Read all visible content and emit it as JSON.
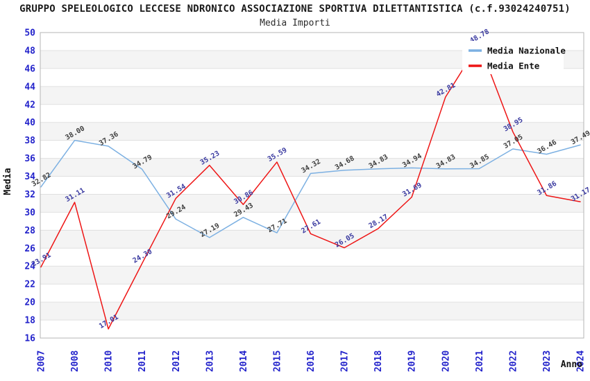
{
  "chart_data": {
    "type": "line",
    "title": "GRUPPO SPELEOLOGICO LECCESE NDRONICO ASSOCIAZIONE SPORTIVA DILETTANTISTICA (c.f.93024240751)",
    "subtitle": "Media Importi",
    "xlabel": "Anno",
    "ylabel": "Media",
    "ylim": [
      16,
      50
    ],
    "ytick_step": 2,
    "yticks": [
      16,
      18,
      20,
      22,
      24,
      26,
      28,
      30,
      32,
      34,
      36,
      38,
      40,
      42,
      44,
      46,
      48,
      50
    ],
    "grid": "horizontal-bands",
    "legend_position": "top-right",
    "categories": [
      "2007",
      "2008",
      "2010",
      "2011",
      "2012",
      "2013",
      "2014",
      "2015",
      "2016",
      "2017",
      "2018",
      "2019",
      "2020",
      "2021",
      "2022",
      "2023",
      "2024"
    ],
    "series": [
      {
        "name": "Media Nazionale",
        "color": "#7cb0e2",
        "label_color": "#3f3f3f",
        "values": [
          32.82,
          38.0,
          37.36,
          34.79,
          29.24,
          27.19,
          29.43,
          27.71,
          34.32,
          34.68,
          34.83,
          34.94,
          34.83,
          34.85,
          37.05,
          36.46,
          37.49
        ]
      },
      {
        "name": "Media Ente",
        "color": "#ee1515",
        "label_color": "#3a3aa0",
        "values": [
          23.91,
          31.11,
          17.01,
          24.3,
          31.54,
          35.23,
          30.86,
          35.59,
          27.61,
          26.05,
          28.17,
          31.69,
          42.81,
          48.78,
          38.95,
          31.86,
          31.17
        ]
      }
    ],
    "colors": {
      "band_white": "#ffffff",
      "band_gray": "#f4f4f4",
      "grid_line": "#e0e0e0",
      "plot_border": "#b5b5b5",
      "tick_label": "#2323cb",
      "axis_title": "#111111",
      "legend_text": "#111111",
      "legend_bg": "#ffffff"
    }
  }
}
